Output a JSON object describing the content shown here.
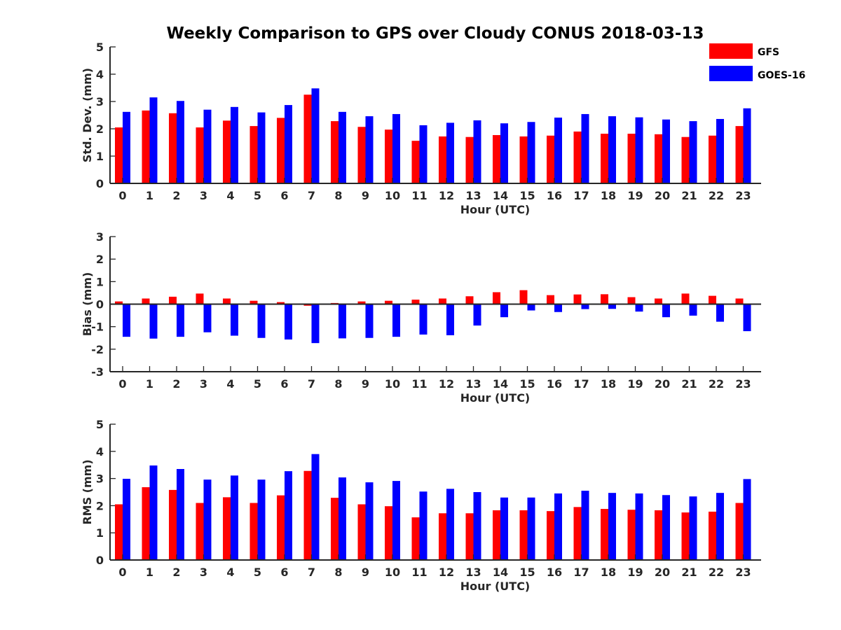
{
  "title": "Weekly Comparison to GPS over Cloudy CONUS 2018-03-13",
  "legend": {
    "placement": "top-right",
    "items": [
      {
        "label": "GFS",
        "color": "#ff0000"
      },
      {
        "label": "GOES-16",
        "color": "#0000ff"
      }
    ]
  },
  "chart_data": [
    {
      "type": "bar",
      "ylabel": "Std. Dev. (mm)",
      "xlabel": "Hour (UTC)",
      "ylim": [
        0,
        5
      ],
      "yticks": [
        "0",
        "1",
        "2",
        "3",
        "4",
        "5"
      ],
      "categories": [
        "0",
        "1",
        "2",
        "3",
        "4",
        "5",
        "6",
        "7",
        "8",
        "9",
        "10",
        "11",
        "12",
        "13",
        "14",
        "15",
        "16",
        "17",
        "18",
        "19",
        "20",
        "21",
        "22",
        "23"
      ],
      "series": [
        {
          "name": "GFS",
          "color": "#ff0000",
          "values": [
            2.05,
            2.67,
            2.57,
            2.05,
            2.3,
            2.1,
            2.4,
            3.25,
            2.28,
            2.07,
            1.97,
            1.56,
            1.72,
            1.7,
            1.77,
            1.72,
            1.75,
            1.9,
            1.82,
            1.82,
            1.8,
            1.7,
            1.75,
            2.1
          ]
        },
        {
          "name": "GOES-16",
          "color": "#0000ff",
          "values": [
            2.62,
            3.15,
            3.02,
            2.7,
            2.8,
            2.6,
            2.87,
            3.48,
            2.62,
            2.46,
            2.54,
            2.13,
            2.22,
            2.31,
            2.2,
            2.25,
            2.41,
            2.54,
            2.46,
            2.42,
            2.34,
            2.28,
            2.36,
            2.75
          ]
        }
      ]
    },
    {
      "type": "bar",
      "ylabel": "Bias (mm)",
      "xlabel": "Hour (UTC)",
      "ylim": [
        -3,
        3
      ],
      "yticks": [
        "-3",
        "-2",
        "-1",
        "0",
        "1",
        "2",
        "3"
      ],
      "categories": [
        "0",
        "1",
        "2",
        "3",
        "4",
        "5",
        "6",
        "7",
        "8",
        "9",
        "10",
        "11",
        "12",
        "13",
        "14",
        "15",
        "16",
        "17",
        "18",
        "19",
        "20",
        "21",
        "22",
        "23"
      ],
      "series": [
        {
          "name": "GFS",
          "color": "#ff0000",
          "values": [
            0.12,
            0.25,
            0.33,
            0.47,
            0.25,
            0.15,
            0.09,
            -0.07,
            0.05,
            0.12,
            0.15,
            0.2,
            0.25,
            0.35,
            0.53,
            0.62,
            0.4,
            0.43,
            0.44,
            0.31,
            0.25,
            0.47,
            0.37,
            0.25
          ]
        },
        {
          "name": "GOES-16",
          "color": "#0000ff",
          "values": [
            -1.45,
            -1.53,
            -1.45,
            -1.25,
            -1.4,
            -1.5,
            -1.57,
            -1.73,
            -1.52,
            -1.5,
            -1.45,
            -1.35,
            -1.38,
            -0.95,
            -0.58,
            -0.28,
            -0.35,
            -0.22,
            -0.21,
            -0.33,
            -0.58,
            -0.51,
            -0.78,
            -1.2
          ]
        }
      ]
    },
    {
      "type": "bar",
      "ylabel": "RMS (mm)",
      "xlabel": "Hour (UTC)",
      "ylim": [
        0,
        5
      ],
      "yticks": [
        "0",
        "1",
        "2",
        "3",
        "4",
        "5"
      ],
      "categories": [
        "0",
        "1",
        "2",
        "3",
        "4",
        "5",
        "6",
        "7",
        "8",
        "9",
        "10",
        "11",
        "12",
        "13",
        "14",
        "15",
        "16",
        "17",
        "18",
        "19",
        "20",
        "21",
        "22",
        "23"
      ],
      "series": [
        {
          "name": "GFS",
          "color": "#ff0000",
          "values": [
            2.05,
            2.68,
            2.58,
            2.1,
            2.31,
            2.1,
            2.38,
            3.28,
            2.29,
            2.05,
            1.98,
            1.57,
            1.72,
            1.72,
            1.83,
            1.83,
            1.8,
            1.95,
            1.88,
            1.85,
            1.83,
            1.75,
            1.78,
            2.1
          ]
        },
        {
          "name": "GOES-16",
          "color": "#0000ff",
          "values": [
            2.99,
            3.48,
            3.35,
            2.96,
            3.11,
            2.96,
            3.27,
            3.9,
            3.04,
            2.86,
            2.91,
            2.52,
            2.62,
            2.5,
            2.3,
            2.3,
            2.45,
            2.55,
            2.47,
            2.45,
            2.39,
            2.34,
            2.47,
            2.98
          ]
        }
      ]
    }
  ]
}
